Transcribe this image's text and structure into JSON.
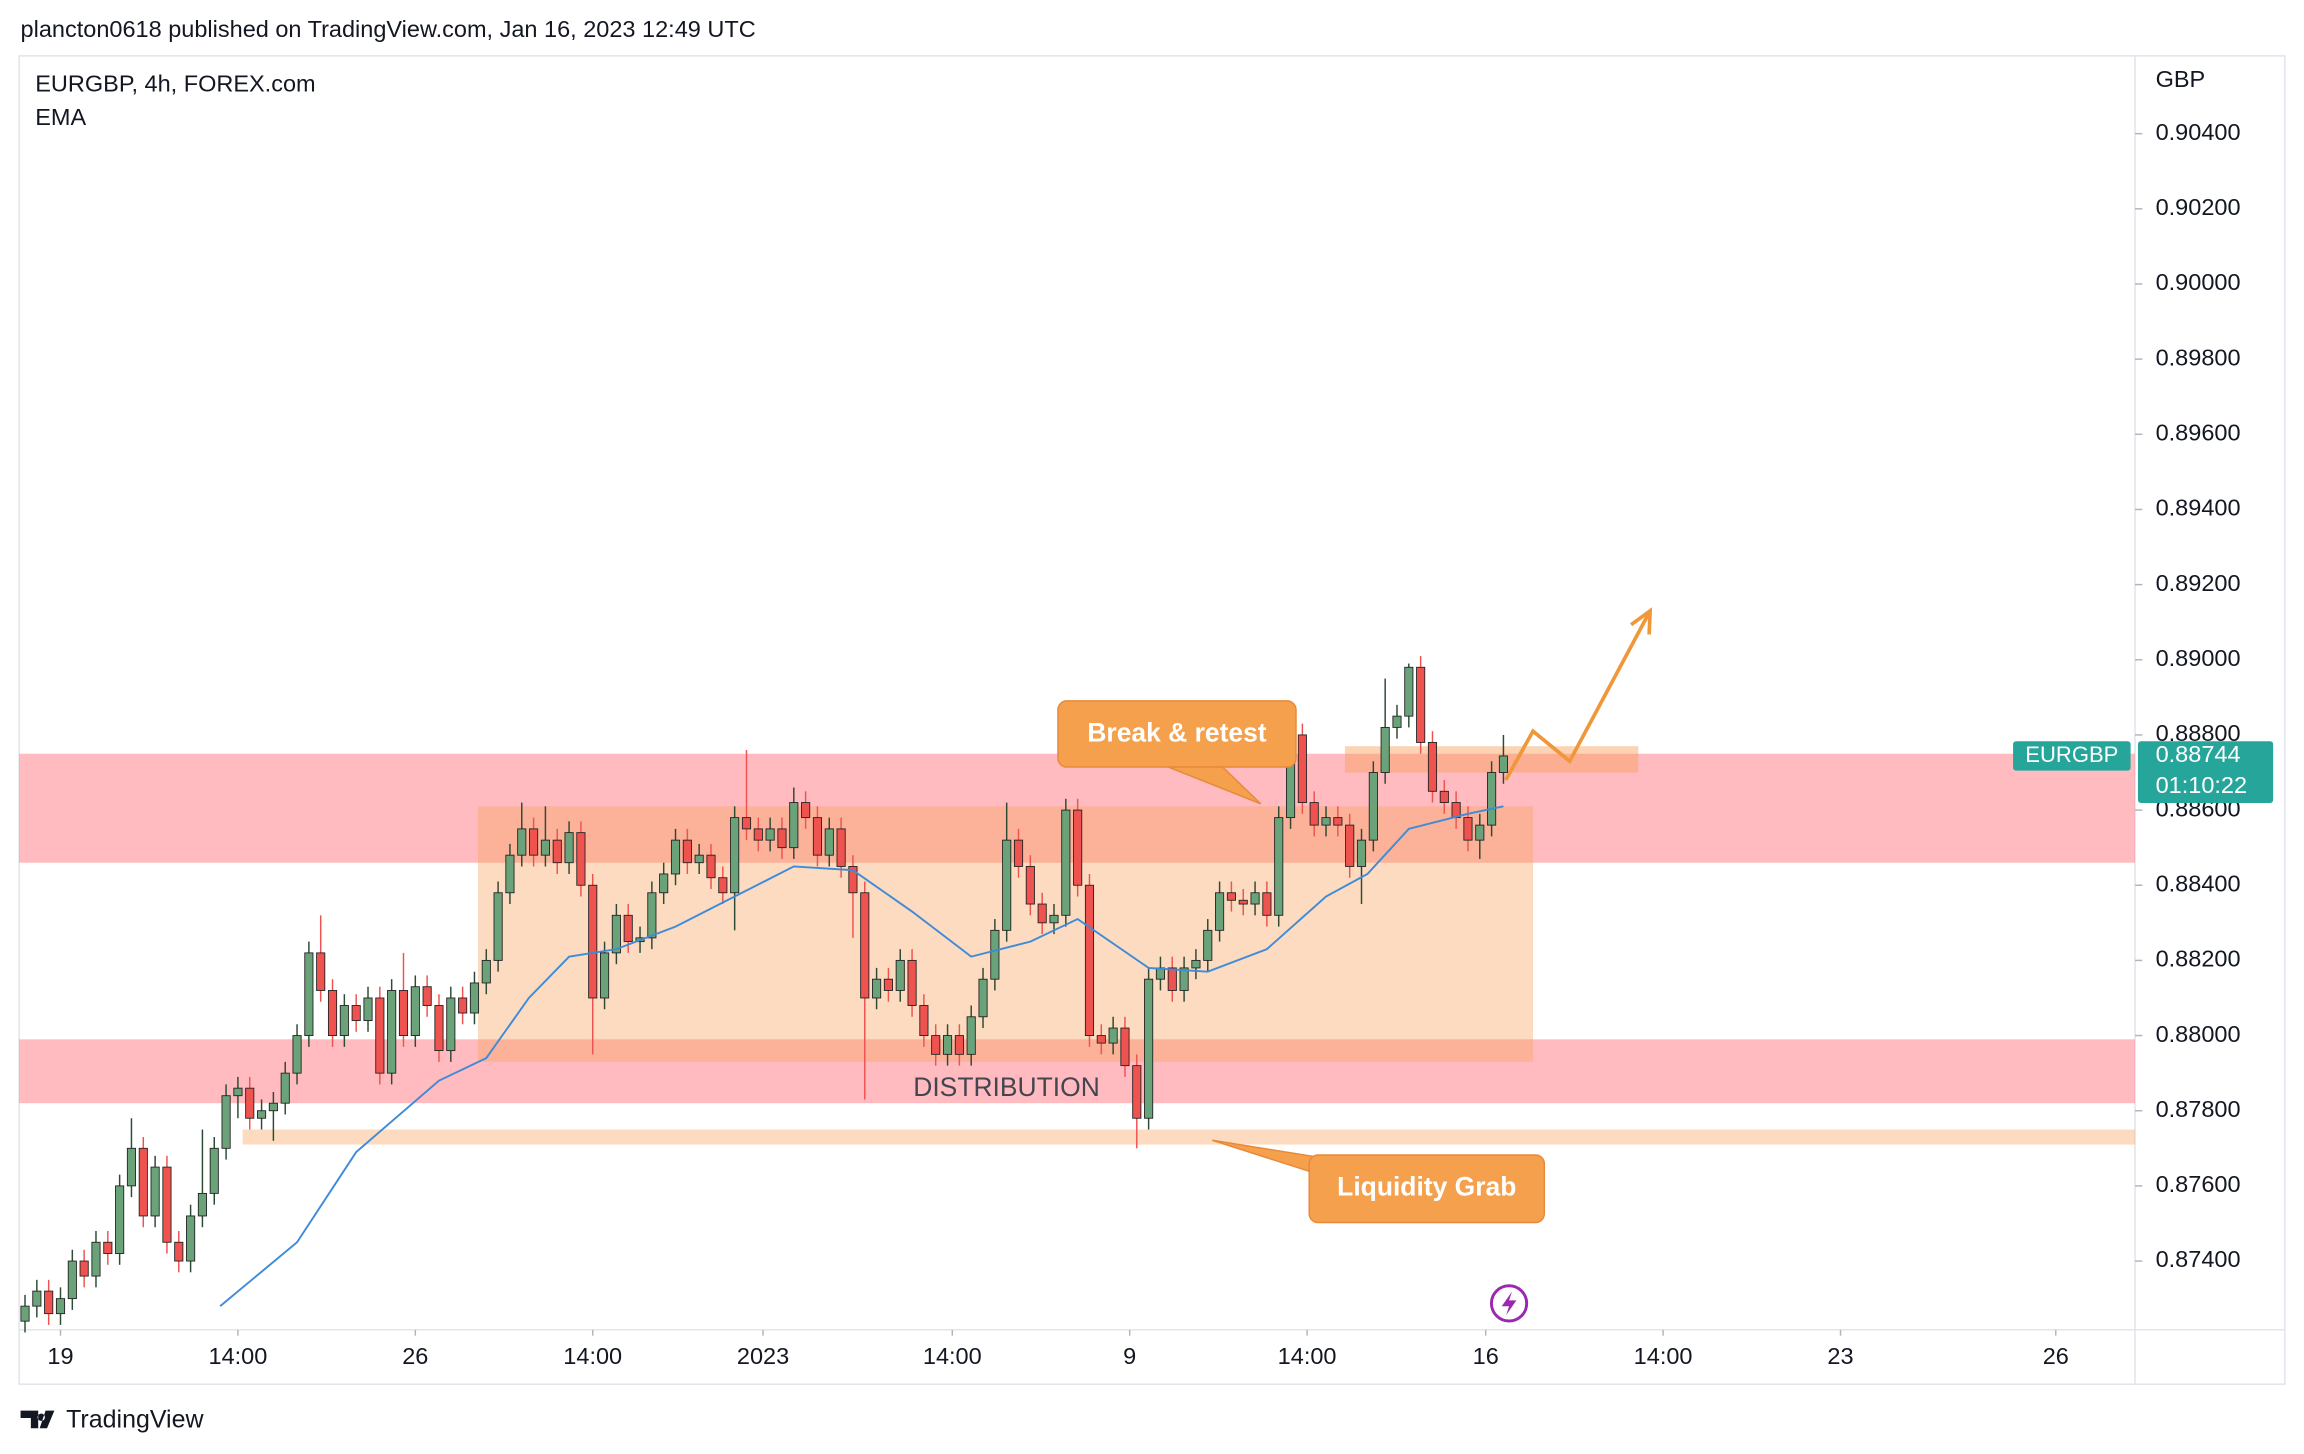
{
  "header": "plancton0618 published on TradingView.com, Jan 16, 2023 12:49 UTC",
  "footer": "TradingView",
  "chart_data": {
    "type": "candlestick",
    "title": "EURGBP, 4h, FOREX.com",
    "currency": "GBP",
    "symbol": "EURGBP",
    "countdown": "01:10:22",
    "up_color": "#6aa27a",
    "down_color": "#ef5350",
    "tag_color": "#26a69a",
    "ylim": [
      0.87217,
      0.90607
    ],
    "yticks": [
      {
        "value": 0.874,
        "label": "0.87400"
      },
      {
        "value": 0.876,
        "label": "0.87600"
      },
      {
        "value": 0.878,
        "label": "0.87800"
      },
      {
        "value": 0.88,
        "label": "0.88000"
      },
      {
        "value": 0.882,
        "label": "0.88200"
      },
      {
        "value": 0.884,
        "label": "0.88400"
      },
      {
        "value": 0.886,
        "label": "0.88600"
      },
      {
        "value": 0.888,
        "label": "0.88800"
      },
      {
        "value": 0.89,
        "label": "0.89000"
      },
      {
        "value": 0.892,
        "label": "0.89200"
      },
      {
        "value": 0.894,
        "label": "0.89400"
      },
      {
        "value": 0.896,
        "label": "0.89600"
      },
      {
        "value": 0.898,
        "label": "0.89800"
      },
      {
        "value": 0.9,
        "label": "0.90000"
      },
      {
        "value": 0.902,
        "label": "0.90200"
      },
      {
        "value": 0.904,
        "label": "0.90400"
      }
    ],
    "xlim": [
      -0.5,
      178.4
    ],
    "xticks": [
      {
        "value": 3,
        "label": "19"
      },
      {
        "value": 18,
        "label": "14:00"
      },
      {
        "value": 33,
        "label": "26"
      },
      {
        "value": 48,
        "label": "14:00"
      },
      {
        "value": 62.4,
        "label": "2023"
      },
      {
        "value": 78.4,
        "label": "14:00"
      },
      {
        "value": 93.4,
        "label": "9"
      },
      {
        "value": 108.4,
        "label": "14:00"
      },
      {
        "value": 123.5,
        "label": "16"
      },
      {
        "value": 138.5,
        "label": "14:00"
      },
      {
        "value": 153.5,
        "label": "23"
      },
      {
        "value": 171.7,
        "label": "26"
      }
    ],
    "open": [
      0.8724,
      0.8728,
      0.8732,
      0.8726,
      0.873,
      0.874,
      0.8736,
      0.8745,
      0.8742,
      0.876,
      0.877,
      0.8752,
      0.8765,
      0.8745,
      0.874,
      0.8752,
      0.8758,
      0.877,
      0.8784,
      0.8786,
      0.8778,
      0.878,
      0.8782,
      0.879,
      0.88,
      0.8822,
      0.8812,
      0.88,
      0.8808,
      0.8804,
      0.881,
      0.879,
      0.8812,
      0.88,
      0.8813,
      0.8808,
      0.8796,
      0.881,
      0.8806,
      0.8814,
      0.882,
      0.8838,
      0.8848,
      0.8855,
      0.8848,
      0.8852,
      0.8846,
      0.8854,
      0.884,
      0.881,
      0.8822,
      0.8832,
      0.8825,
      0.8826,
      0.8838,
      0.8843,
      0.8852,
      0.8846,
      0.8848,
      0.8842,
      0.8838,
      0.8858,
      0.8855,
      0.8852,
      0.8855,
      0.885,
      0.8862,
      0.8858,
      0.8848,
      0.8855,
      0.8845,
      0.8838,
      0.881,
      0.8815,
      0.8812,
      0.882,
      0.8808,
      0.88,
      0.8795,
      0.88,
      0.8795,
      0.8805,
      0.8815,
      0.8828,
      0.8852,
      0.8845,
      0.8835,
      0.883,
      0.8832,
      0.886,
      0.884,
      0.88,
      0.8798,
      0.8802,
      0.8792,
      0.8778,
      0.8815,
      0.8818,
      0.8812,
      0.8818,
      0.882,
      0.8828,
      0.8838,
      0.8836,
      0.8835,
      0.8838,
      0.8832,
      0.8858,
      0.888,
      0.8862,
      0.8856,
      0.8858,
      0.8856,
      0.8845,
      0.8852,
      0.887,
      0.8882,
      0.8885,
      0.8898,
      0.8878,
      0.8865,
      0.8862,
      0.8858,
      0.8852,
      0.8856,
      0.887
    ],
    "high": [
      0.8731,
      0.8735,
      0.8735,
      0.8733,
      0.8743,
      0.8743,
      0.8748,
      0.8748,
      0.8763,
      0.8778,
      0.8773,
      0.8768,
      0.8768,
      0.8748,
      0.8755,
      0.8775,
      0.8773,
      0.8787,
      0.8789,
      0.8789,
      0.8783,
      0.8785,
      0.8793,
      0.8803,
      0.8825,
      0.8832,
      0.8815,
      0.8811,
      0.8811,
      0.8813,
      0.8813,
      0.8815,
      0.8822,
      0.8816,
      0.8816,
      0.8811,
      0.8813,
      0.8813,
      0.8817,
      0.8823,
      0.8841,
      0.8851,
      0.8862,
      0.8858,
      0.8861,
      0.8855,
      0.8857,
      0.8857,
      0.8843,
      0.8825,
      0.8835,
      0.8835,
      0.8829,
      0.8841,
      0.8846,
      0.8855,
      0.8855,
      0.8851,
      0.8851,
      0.8845,
      0.8861,
      0.8876,
      0.8858,
      0.8858,
      0.8858,
      0.8866,
      0.8865,
      0.8861,
      0.8858,
      0.8858,
      0.8848,
      0.8841,
      0.8818,
      0.8818,
      0.8823,
      0.8823,
      0.8811,
      0.8803,
      0.8803,
      0.8803,
      0.8808,
      0.8818,
      0.8831,
      0.8862,
      0.8855,
      0.8848,
      0.8838,
      0.8835,
      0.8863,
      0.8863,
      0.8843,
      0.8803,
      0.8805,
      0.8805,
      0.8795,
      0.8818,
      0.8821,
      0.8821,
      0.8821,
      0.8823,
      0.8831,
      0.8841,
      0.8841,
      0.8839,
      0.8841,
      0.8841,
      0.8861,
      0.8883,
      0.8883,
      0.8865,
      0.8861,
      0.8861,
      0.8859,
      0.8855,
      0.8873,
      0.8895,
      0.8888,
      0.8899,
      0.8901,
      0.8881,
      0.8868,
      0.8865,
      0.8861,
      0.8859,
      0.8873,
      0.888
    ],
    "low": [
      0.8721,
      0.8725,
      0.8723,
      0.8723,
      0.8727,
      0.8733,
      0.8733,
      0.8739,
      0.8739,
      0.8757,
      0.8749,
      0.8749,
      0.8742,
      0.8737,
      0.8737,
      0.8749,
      0.8755,
      0.8767,
      0.8778,
      0.8775,
      0.8775,
      0.8772,
      0.8779,
      0.8787,
      0.8797,
      0.8809,
      0.8797,
      0.8797,
      0.8801,
      0.8801,
      0.8787,
      0.8787,
      0.8797,
      0.8797,
      0.8805,
      0.8793,
      0.8793,
      0.8803,
      0.8803,
      0.8811,
      0.8817,
      0.8835,
      0.8845,
      0.8845,
      0.8845,
      0.8843,
      0.8843,
      0.8837,
      0.8795,
      0.8807,
      0.8819,
      0.8822,
      0.8822,
      0.8823,
      0.8835,
      0.884,
      0.8843,
      0.8843,
      0.8839,
      0.8835,
      0.8828,
      0.8852,
      0.8849,
      0.8849,
      0.8847,
      0.8847,
      0.8855,
      0.8845,
      0.8845,
      0.8842,
      0.8826,
      0.8783,
      0.8807,
      0.8809,
      0.8809,
      0.8805,
      0.8797,
      0.8792,
      0.8792,
      0.8792,
      0.8792,
      0.8802,
      0.8812,
      0.8825,
      0.8842,
      0.8832,
      0.8827,
      0.8827,
      0.8829,
      0.8837,
      0.8797,
      0.8795,
      0.8795,
      0.8789,
      0.877,
      0.8775,
      0.8812,
      0.8809,
      0.8809,
      0.8815,
      0.8817,
      0.8825,
      0.8833,
      0.8832,
      0.8832,
      0.8829,
      0.8829,
      0.8855,
      0.8859,
      0.8853,
      0.8853,
      0.8853,
      0.8842,
      0.8835,
      0.8849,
      0.8867,
      0.8879,
      0.8882,
      0.8875,
      0.8862,
      0.8859,
      0.8855,
      0.8849,
      0.8847,
      0.8853,
      0.8867
    ],
    "close": [
      0.8728,
      0.8732,
      0.8726,
      0.873,
      0.874,
      0.8736,
      0.8745,
      0.8742,
      0.876,
      0.877,
      0.8752,
      0.8765,
      0.8745,
      0.874,
      0.8752,
      0.8758,
      0.877,
      0.8784,
      0.8786,
      0.8778,
      0.878,
      0.8782,
      0.879,
      0.88,
      0.8822,
      0.8812,
      0.88,
      0.8808,
      0.8804,
      0.881,
      0.879,
      0.8812,
      0.88,
      0.8813,
      0.8808,
      0.8796,
      0.881,
      0.8806,
      0.8814,
      0.882,
      0.8838,
      0.8848,
      0.8855,
      0.8848,
      0.8852,
      0.8846,
      0.8854,
      0.884,
      0.881,
      0.8822,
      0.8832,
      0.8825,
      0.8826,
      0.8838,
      0.8843,
      0.8852,
      0.8846,
      0.8848,
      0.8842,
      0.8838,
      0.8858,
      0.8855,
      0.8852,
      0.8855,
      0.885,
      0.8862,
      0.8858,
      0.8848,
      0.8855,
      0.8845,
      0.8838,
      0.881,
      0.8815,
      0.8812,
      0.882,
      0.8808,
      0.88,
      0.8795,
      0.88,
      0.8795,
      0.8805,
      0.8815,
      0.8828,
      0.8852,
      0.8845,
      0.8835,
      0.883,
      0.8832,
      0.886,
      0.884,
      0.88,
      0.8798,
      0.8802,
      0.8792,
      0.8778,
      0.8815,
      0.8818,
      0.8812,
      0.8818,
      0.882,
      0.8828,
      0.8838,
      0.8836,
      0.8835,
      0.8838,
      0.8832,
      0.8858,
      0.888,
      0.8862,
      0.8856,
      0.8858,
      0.8856,
      0.8845,
      0.8852,
      0.887,
      0.8882,
      0.8885,
      0.8898,
      0.8878,
      0.8865,
      0.8862,
      0.8858,
      0.8852,
      0.8856,
      0.887,
      0.88744
    ],
    "ema": {
      "name": "EMA",
      "color": "#3d8bd9",
      "x": [
        16.5,
        23,
        28,
        35,
        39,
        42.6,
        46,
        50,
        55,
        60,
        65,
        70,
        75,
        80,
        85,
        89,
        95,
        100,
        105,
        110,
        113.5,
        117,
        122,
        125
      ],
      "values": [
        0.8728,
        0.8745,
        0.8769,
        0.8788,
        0.8794,
        0.881,
        0.8821,
        0.8823,
        0.8829,
        0.8837,
        0.8845,
        0.8844,
        0.8833,
        0.8821,
        0.8825,
        0.8831,
        0.8818,
        0.8817,
        0.8823,
        0.8837,
        0.8843,
        0.8855,
        0.8859,
        0.8861
      ]
    },
    "zones": [
      {
        "x": [
          -0.5,
          178.4
        ],
        "y": [
          0.8875,
          0.8846
        ],
        "color": "rgba(255,120,130,0.5)"
      },
      {
        "x": [
          -0.5,
          178.4
        ],
        "y": [
          0.8799,
          0.8782
        ],
        "color": "rgba(255,120,130,0.5)"
      },
      {
        "x": [
          38.3,
          127.5
        ],
        "y": [
          0.8861,
          0.8793
        ],
        "color": "rgba(246,160,90,0.38)"
      },
      {
        "x": [
          18.4,
          178.4
        ],
        "y": [
          0.8775,
          0.8771
        ],
        "color": "rgba(246,160,90,0.38)"
      },
      {
        "x": [
          111.6,
          136.4
        ],
        "y": [
          0.8877,
          0.887
        ],
        "color": "rgba(246,160,90,0.45)"
      }
    ],
    "projection": {
      "color": "#f0973a",
      "x": [
        125.2,
        127.5,
        130.6,
        137.4
      ],
      "y": [
        0.8868,
        0.8881,
        0.8873,
        0.8913
      ]
    },
    "annotations": [
      "Break & retest",
      "Liquidity Grab",
      "DISTRIBUTION"
    ]
  }
}
